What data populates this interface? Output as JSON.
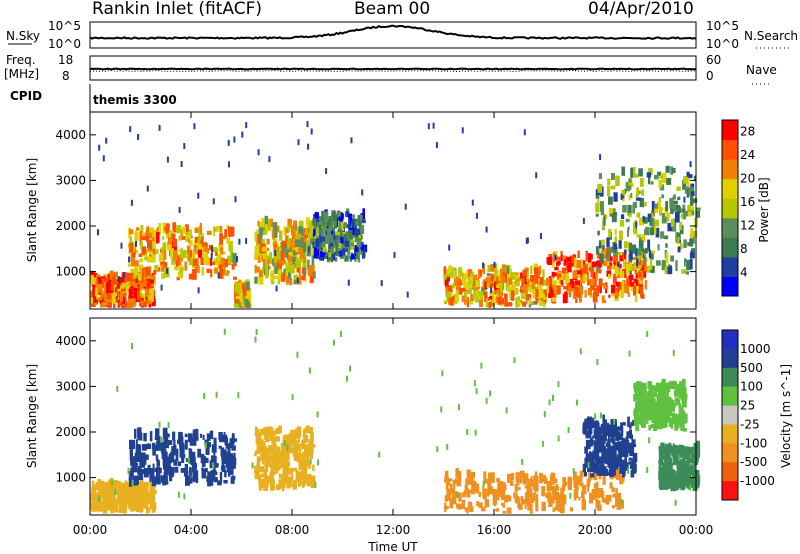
{
  "header": {
    "station": "Rankin Inlet (fitACF)",
    "beam": "Beam 00",
    "date": "04/Apr/2010"
  },
  "noise_panel": {
    "left_label": "N.Sky",
    "right_label": "N.Search",
    "left_ticks": [
      "10^5",
      "10^0"
    ],
    "right_ticks": [
      "10^5",
      "10^0"
    ]
  },
  "freq_panel": {
    "left_label_top": "Freq.",
    "left_label_unit": "[MHz]",
    "left_ticks": [
      "18",
      "8"
    ],
    "right_label": "Nave",
    "right_ticks": [
      "60",
      "0"
    ],
    "cpid_label": "CPID",
    "cpid_text": "themis 3300"
  },
  "colors": {
    "power_scale": [
      "#0000ff",
      "#1e3fa0",
      "#3c7a50",
      "#5a8f5a",
      "#b4c800",
      "#e0d000",
      "#f08000",
      "#ff5000",
      "#ff0000"
    ],
    "velocity_scale": [
      "#2030c0",
      "#204090",
      "#3c8c5a",
      "#60c040",
      "#c8c8c0",
      "#e8b020",
      "#f09020",
      "#f06010",
      "#ff1010"
    ]
  },
  "chart_data": [
    {
      "type": "heatmap",
      "name": "power",
      "xlabel": "Time UT",
      "ylabel": "Slant Range [km]",
      "x_ticks": [
        "00:00",
        "04:00",
        "08:00",
        "12:00",
        "16:00",
        "20:00",
        "00:00"
      ],
      "y_ticks": [
        1000,
        2000,
        3000,
        4000
      ],
      "ylim": [
        180,
        4500
      ],
      "colorbar": {
        "label": "Power [dB]",
        "ticks": [
          4,
          8,
          12,
          16,
          20,
          24,
          28
        ],
        "range": [
          0,
          30
        ]
      },
      "blobs": [
        {
          "t0": 0.0,
          "t1": 2.5,
          "r0": 200,
          "r1": 800,
          "power": 24
        },
        {
          "t0": 1.5,
          "t1": 5.7,
          "r0": 800,
          "r1": 1900,
          "power": 20
        },
        {
          "t0": 5.7,
          "t1": 6.2,
          "r0": 200,
          "r1": 600,
          "power": 18
        },
        {
          "t0": 6.5,
          "t1": 8.8,
          "r0": 700,
          "r1": 2000,
          "power": 18
        },
        {
          "t0": 8.8,
          "t1": 10.8,
          "r0": 1200,
          "r1": 2200,
          "power": 8
        },
        {
          "t0": 14.0,
          "t1": 18.0,
          "r0": 200,
          "r1": 1000,
          "power": 20
        },
        {
          "t0": 18.0,
          "t1": 22.0,
          "r0": 300,
          "r1": 1300,
          "power": 24
        },
        {
          "t0": 20.0,
          "t1": 24.0,
          "r0": 900,
          "r1": 3200,
          "power": 12
        }
      ]
    },
    {
      "type": "heatmap",
      "name": "velocity",
      "xlabel": "Time UT",
      "ylabel": "Slant Range [km]",
      "x_ticks": [
        "00:00",
        "04:00",
        "08:00",
        "12:00",
        "16:00",
        "20:00",
        "00:00"
      ],
      "y_ticks": [
        1000,
        2000,
        3000,
        4000
      ],
      "ylim": [
        180,
        4500
      ],
      "colorbar": {
        "label": "Velocity [m s^-1]",
        "ticks": [
          1000,
          500,
          100,
          25,
          -25,
          -100,
          -500,
          -1000
        ]
      },
      "blobs": [
        {
          "t0": 0.0,
          "t1": 2.5,
          "r0": 200,
          "r1": 800,
          "velocity": -100
        },
        {
          "t0": 1.5,
          "t1": 5.7,
          "r0": 800,
          "r1": 1900,
          "velocity": 500
        },
        {
          "t0": 6.5,
          "t1": 8.8,
          "r0": 700,
          "r1": 2000,
          "velocity": -100
        },
        {
          "t0": 14.0,
          "t1": 21.0,
          "r0": 200,
          "r1": 1000,
          "velocity": -500
        },
        {
          "t0": 19.5,
          "t1": 21.5,
          "r0": 1000,
          "r1": 2200,
          "velocity": 500
        },
        {
          "t0": 21.5,
          "t1": 23.5,
          "r0": 2000,
          "r1": 3000,
          "velocity": 25
        },
        {
          "t0": 22.5,
          "t1": 24.0,
          "r0": 700,
          "r1": 1600,
          "velocity": 100
        }
      ]
    }
  ]
}
